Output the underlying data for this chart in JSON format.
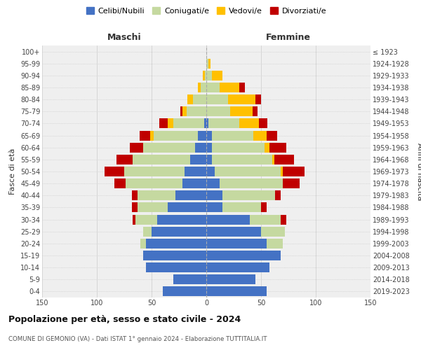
{
  "age_groups": [
    "0-4",
    "5-9",
    "10-14",
    "15-19",
    "20-24",
    "25-29",
    "30-34",
    "35-39",
    "40-44",
    "45-49",
    "50-54",
    "55-59",
    "60-64",
    "65-69",
    "70-74",
    "75-79",
    "80-84",
    "85-89",
    "90-94",
    "95-99",
    "100+"
  ],
  "birth_years": [
    "2019-2023",
    "2014-2018",
    "2009-2013",
    "2004-2008",
    "1999-2003",
    "1994-1998",
    "1989-1993",
    "1984-1988",
    "1979-1983",
    "1974-1978",
    "1969-1973",
    "1964-1968",
    "1959-1963",
    "1954-1958",
    "1949-1953",
    "1944-1948",
    "1939-1943",
    "1934-1938",
    "1929-1933",
    "1924-1928",
    "≤ 1923"
  ],
  "males": {
    "celibi": [
      40,
      30,
      55,
      58,
      55,
      50,
      45,
      35,
      28,
      22,
      20,
      15,
      10,
      8,
      2,
      0,
      0,
      0,
      0,
      0,
      0
    ],
    "coniugati": [
      0,
      0,
      0,
      0,
      5,
      8,
      20,
      28,
      35,
      52,
      55,
      52,
      48,
      40,
      28,
      18,
      12,
      5,
      1,
      0,
      0
    ],
    "vedovi": [
      0,
      0,
      0,
      0,
      0,
      0,
      0,
      0,
      0,
      0,
      0,
      0,
      0,
      3,
      5,
      4,
      5,
      3,
      2,
      0,
      0
    ],
    "divorziati": [
      0,
      0,
      0,
      0,
      0,
      0,
      2,
      5,
      5,
      10,
      18,
      15,
      12,
      10,
      8,
      2,
      0,
      0,
      0,
      0,
      0
    ]
  },
  "females": {
    "nubili": [
      55,
      45,
      58,
      68,
      55,
      50,
      40,
      15,
      15,
      12,
      8,
      5,
      5,
      5,
      2,
      0,
      0,
      0,
      0,
      0,
      0
    ],
    "coniugate": [
      0,
      0,
      0,
      0,
      15,
      22,
      28,
      35,
      48,
      58,
      60,
      55,
      48,
      38,
      28,
      22,
      20,
      12,
      5,
      2,
      0
    ],
    "vedove": [
      0,
      0,
      0,
      0,
      0,
      0,
      0,
      0,
      0,
      0,
      2,
      2,
      5,
      12,
      18,
      20,
      25,
      18,
      10,
      2,
      0
    ],
    "divorziate": [
      0,
      0,
      0,
      0,
      0,
      0,
      5,
      5,
      5,
      15,
      20,
      18,
      15,
      10,
      8,
      5,
      5,
      5,
      0,
      0,
      0
    ]
  },
  "colors": {
    "celibi": "#4472c4",
    "coniugati": "#c5d9a0",
    "vedovi": "#ffc000",
    "divorziati": "#c00000"
  },
  "legend_labels": [
    "Celibi/Nubili",
    "Coniugati/e",
    "Vedovi/e",
    "Divorziati/e"
  ],
  "title": "Popolazione per età, sesso e stato civile - 2024",
  "subtitle": "COMUNE DI GEMONIO (VA) - Dati ISTAT 1° gennaio 2024 - Elaborazione TUTTITALIA.IT",
  "xlabel_left": "Maschi",
  "xlabel_right": "Femmine",
  "ylabel_left": "Fasce di età",
  "ylabel_right": "Anni di nascita",
  "xlim": 150,
  "bg_color": "#ffffff",
  "plot_bg": "#efefef",
  "grid_color": "#cccccc"
}
